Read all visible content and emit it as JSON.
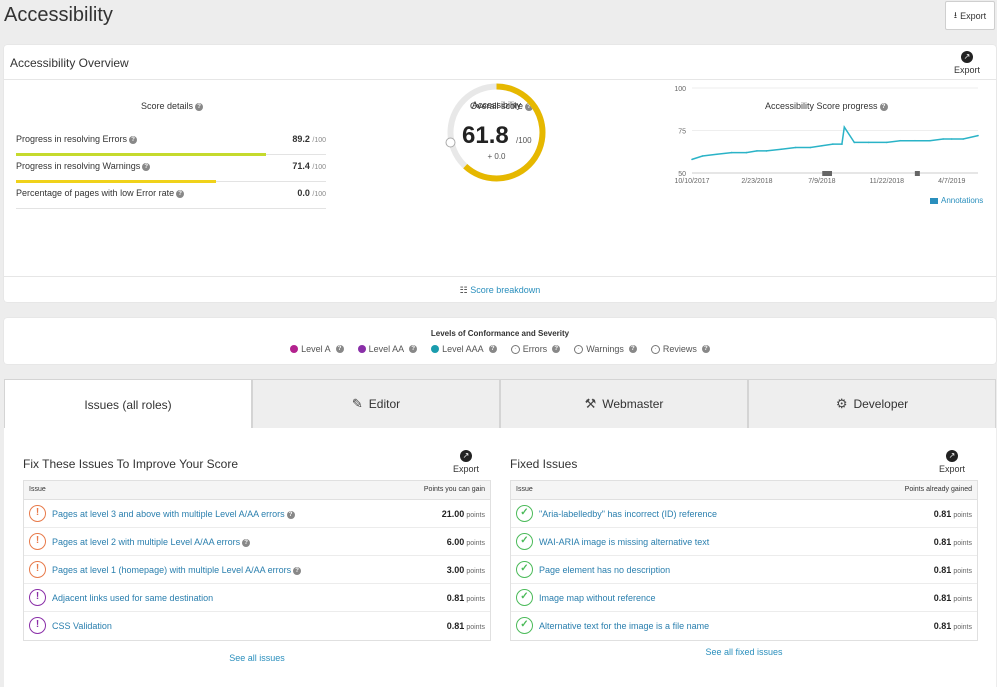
{
  "page": {
    "title": "Accessibility",
    "export_label": "Export"
  },
  "overview": {
    "title": "Accessibility Overview",
    "export_label": "Export",
    "score_details": {
      "label": "Score details",
      "rows": [
        {
          "label": "Progress in resolving Errors",
          "value": "89.2",
          "max": "/100",
          "progress": 0.892,
          "color": "#c5da2d"
        },
        {
          "label": "Progress in resolving Warnings",
          "value": "71.4",
          "max": "/100",
          "progress": 0.714,
          "color": "#f0d21a"
        },
        {
          "label": "Percentage of pages with low Error rate",
          "value": "0.0",
          "max": "/100",
          "progress": 0,
          "color": "#c5da2d"
        }
      ]
    },
    "overall": {
      "label": "Overall score",
      "gauge_label": "Accessibility",
      "value": "61.8",
      "max": "/100",
      "delta": "+ 0.0",
      "fraction": 0.618,
      "color": "#e6b800"
    },
    "progress_chart": {
      "label": "Accessibility Score progress",
      "annotations_label": "Annotations",
      "y_ticks": [
        "100",
        "75",
        "50"
      ],
      "x_ticks": [
        "10/10/2017",
        "2/23/2018",
        "7/9/2018",
        "11/22/2018",
        "4/7/2019"
      ]
    },
    "breakdown_label": "Score breakdown"
  },
  "chart_data": {
    "type": "line",
    "title": "Accessibility Score progress",
    "ylim": [
      50,
      100
    ],
    "x_ticks": [
      "10/10/2017",
      "2/23/2018",
      "7/9/2018",
      "11/22/2018",
      "4/7/2019"
    ],
    "series": [
      {
        "color": "#2ab3c7",
        "x": [
          "10/10/2017",
          "11/1/2017",
          "12/1/2017",
          "1/1/2018",
          "2/1/2018",
          "2/23/2018",
          "3/15/2018",
          "4/15/2018",
          "5/15/2018",
          "6/15/2018",
          "7/9/2018",
          "8/1/2018",
          "8/20/2018",
          "8/25/2018",
          "9/15/2018",
          "10/15/2018",
          "11/22/2018",
          "12/20/2018",
          "1/20/2019",
          "2/20/2019",
          "3/20/2019",
          "4/7/2019",
          "5/1/2019",
          "6/1/2019"
        ],
        "values": [
          58,
          60,
          61,
          62,
          62,
          63,
          63,
          64,
          65,
          65,
          66,
          67,
          67,
          77,
          68,
          68,
          68,
          69,
          69,
          69,
          70,
          70,
          70,
          72
        ]
      }
    ]
  },
  "legend": {
    "title": "Levels of Conformance and Severity",
    "items": [
      {
        "label": "Level A",
        "color": "#b3228e",
        "icon": "dot"
      },
      {
        "label": "Level AA",
        "color": "#8a2fa8",
        "icon": "dot"
      },
      {
        "label": "Level AAA",
        "color": "#1a9cad",
        "icon": "dot"
      },
      {
        "label": "Errors",
        "icon": "ring"
      },
      {
        "label": "Warnings",
        "icon": "ring"
      },
      {
        "label": "Reviews",
        "icon": "ring"
      }
    ]
  },
  "tabs": [
    {
      "label": "Issues (all roles)",
      "icon": ""
    },
    {
      "label": "Editor",
      "icon": "editor-icon"
    },
    {
      "label": "Webmaster",
      "icon": "webmaster-icon"
    },
    {
      "label": "Developer",
      "icon": "developer-icon"
    }
  ],
  "fix_issues": {
    "title": "Fix These Issues To Improve Your Score",
    "export_label": "Export",
    "col_issue": "Issue",
    "col_points": "Points you can gain",
    "see_all": "See all issues",
    "rows": [
      {
        "text": "Pages at level 3 and above with multiple Level A/AA errors",
        "points": "21.00",
        "unit": "points",
        "type": "error",
        "help": true
      },
      {
        "text": "Pages at level 2 with multiple Level A/AA errors",
        "points": "6.00",
        "unit": "points",
        "type": "error",
        "help": true
      },
      {
        "text": "Pages at level 1 (homepage) with multiple Level A/AA errors",
        "points": "3.00",
        "unit": "points",
        "type": "error",
        "help": true
      },
      {
        "text": "Adjacent links used for same destination",
        "points": "0.81",
        "unit": "points",
        "type": "level",
        "help": false
      },
      {
        "text": "CSS Validation",
        "points": "0.81",
        "unit": "points",
        "type": "level",
        "help": false
      }
    ]
  },
  "fixed_issues": {
    "title": "Fixed Issues",
    "export_label": "Export",
    "col_issue": "Issue",
    "col_points": "Points already gained",
    "see_all": "See all fixed issues",
    "rows": [
      {
        "text": "\"Aria-labelledby\" has incorrect (ID) reference",
        "points": "0.81",
        "unit": "points"
      },
      {
        "text": "WAI-ARIA image is missing alternative text",
        "points": "0.81",
        "unit": "points"
      },
      {
        "text": "Page element has no description",
        "points": "0.81",
        "unit": "points"
      },
      {
        "text": "Image map without reference",
        "points": "0.81",
        "unit": "points"
      },
      {
        "text": "Alternative text for the image is a file name",
        "points": "0.81",
        "unit": "points"
      }
    ]
  }
}
